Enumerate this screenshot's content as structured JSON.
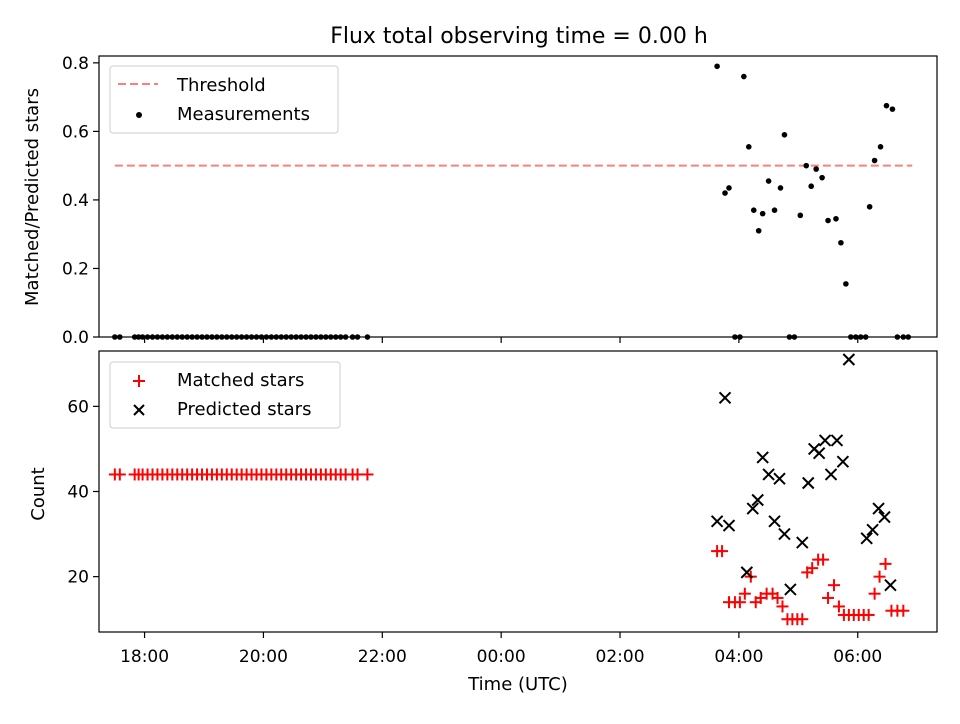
{
  "chart_data": [
    {
      "type": "scatter",
      "title": "Flux total observing time = 0.00 h",
      "ylabel": "Matched/Predicted stars",
      "xlabel": "",
      "xlim": [
        "17:14",
        "07:20"
      ],
      "ylim": [
        0,
        0.82
      ],
      "yticks": [
        0.0,
        0.2,
        0.4,
        0.6,
        0.8
      ],
      "ytick_labels": [
        "0.0",
        "0.2",
        "0.4",
        "0.6",
        "0.8"
      ],
      "legend_position": "upper-left",
      "threshold": {
        "name": "Threshold",
        "color": "#ff7f7f",
        "style": "dashed",
        "y": 0.5,
        "x_range": [
          "17:30",
          "06:55"
        ]
      },
      "series": [
        {
          "name": "Measurements",
          "color": "#000000",
          "marker": "dot",
          "points": [
            [
              "17:30",
              0
            ],
            [
              "17:35",
              0
            ],
            [
              "17:50",
              0
            ],
            [
              "17:54",
              0
            ],
            [
              "17:58",
              0
            ],
            [
              "18:03",
              0
            ],
            [
              "18:08",
              0
            ],
            [
              "18:13",
              0
            ],
            [
              "18:18",
              0
            ],
            [
              "18:23",
              0
            ],
            [
              "18:28",
              0
            ],
            [
              "18:33",
              0
            ],
            [
              "18:38",
              0
            ],
            [
              "18:43",
              0
            ],
            [
              "18:48",
              0
            ],
            [
              "18:53",
              0
            ],
            [
              "18:58",
              0
            ],
            [
              "19:03",
              0
            ],
            [
              "19:08",
              0
            ],
            [
              "19:13",
              0
            ],
            [
              "19:18",
              0
            ],
            [
              "19:23",
              0
            ],
            [
              "19:28",
              0
            ],
            [
              "19:33",
              0
            ],
            [
              "19:38",
              0
            ],
            [
              "19:43",
              0
            ],
            [
              "19:48",
              0
            ],
            [
              "19:53",
              0
            ],
            [
              "19:58",
              0
            ],
            [
              "20:03",
              0
            ],
            [
              "20:08",
              0
            ],
            [
              "20:13",
              0
            ],
            [
              "20:18",
              0
            ],
            [
              "20:23",
              0
            ],
            [
              "20:28",
              0
            ],
            [
              "20:33",
              0
            ],
            [
              "20:38",
              0
            ],
            [
              "20:43",
              0
            ],
            [
              "20:48",
              0
            ],
            [
              "20:53",
              0
            ],
            [
              "20:58",
              0
            ],
            [
              "21:03",
              0
            ],
            [
              "21:08",
              0
            ],
            [
              "21:13",
              0
            ],
            [
              "21:18",
              0
            ],
            [
              "21:23",
              0
            ],
            [
              "21:30",
              0
            ],
            [
              "21:35",
              0
            ],
            [
              "21:45",
              0
            ],
            [
              "03:38",
              0.79
            ],
            [
              "03:46",
              0.42
            ],
            [
              "03:50",
              0.435
            ],
            [
              "03:56",
              0
            ],
            [
              "04:01",
              0
            ],
            [
              "04:05",
              0.76
            ],
            [
              "04:10",
              0.555
            ],
            [
              "04:15",
              0.37
            ],
            [
              "04:20",
              0.31
            ],
            [
              "04:24",
              0.36
            ],
            [
              "04:30",
              0.455
            ],
            [
              "04:36",
              0.37
            ],
            [
              "04:42",
              0.435
            ],
            [
              "04:46",
              0.59
            ],
            [
              "04:51",
              0
            ],
            [
              "04:56",
              0
            ],
            [
              "05:02",
              0.355
            ],
            [
              "05:08",
              0.5
            ],
            [
              "05:13",
              0.44
            ],
            [
              "05:18",
              0.49
            ],
            [
              "05:24",
              0.465
            ],
            [
              "05:30",
              0.34
            ],
            [
              "05:38",
              0.345
            ],
            [
              "05:43",
              0.275
            ],
            [
              "05:48",
              0.155
            ],
            [
              "05:53",
              0
            ],
            [
              "05:58",
              0
            ],
            [
              "06:03",
              0
            ],
            [
              "06:08",
              0
            ],
            [
              "06:12",
              0.38
            ],
            [
              "06:17",
              0.515
            ],
            [
              "06:23",
              0.555
            ],
            [
              "06:29",
              0.675
            ],
            [
              "06:35",
              0.665
            ],
            [
              "06:40",
              0
            ],
            [
              "06:46",
              0
            ],
            [
              "06:51",
              0
            ]
          ]
        }
      ]
    },
    {
      "type": "scatter",
      "title": "",
      "ylabel": "Count",
      "xlabel": "Time (UTC)",
      "xlim": [
        "17:14",
        "07:20"
      ],
      "ylim": [
        7,
        73
      ],
      "yticks": [
        20,
        40,
        60
      ],
      "ytick_labels": [
        "20",
        "40",
        "60"
      ],
      "xticks": [
        "18:00",
        "20:00",
        "22:00",
        "00:00",
        "02:00",
        "04:00",
        "06:00"
      ],
      "legend_position": "upper-left",
      "series": [
        {
          "name": "Matched stars",
          "color": "#ff0000",
          "marker": "plus",
          "points": [
            [
              "17:30",
              44
            ],
            [
              "17:35",
              44
            ],
            [
              "17:50",
              44
            ],
            [
              "17:54",
              44
            ],
            [
              "17:58",
              44
            ],
            [
              "18:03",
              44
            ],
            [
              "18:08",
              44
            ],
            [
              "18:13",
              44
            ],
            [
              "18:18",
              44
            ],
            [
              "18:23",
              44
            ],
            [
              "18:28",
              44
            ],
            [
              "18:33",
              44
            ],
            [
              "18:38",
              44
            ],
            [
              "18:43",
              44
            ],
            [
              "18:48",
              44
            ],
            [
              "18:53",
              44
            ],
            [
              "18:58",
              44
            ],
            [
              "19:03",
              44
            ],
            [
              "19:08",
              44
            ],
            [
              "19:13",
              44
            ],
            [
              "19:18",
              44
            ],
            [
              "19:23",
              44
            ],
            [
              "19:28",
              44
            ],
            [
              "19:33",
              44
            ],
            [
              "19:38",
              44
            ],
            [
              "19:43",
              44
            ],
            [
              "19:48",
              44
            ],
            [
              "19:53",
              44
            ],
            [
              "19:58",
              44
            ],
            [
              "20:03",
              44
            ],
            [
              "20:08",
              44
            ],
            [
              "20:13",
              44
            ],
            [
              "20:18",
              44
            ],
            [
              "20:23",
              44
            ],
            [
              "20:28",
              44
            ],
            [
              "20:33",
              44
            ],
            [
              "20:38",
              44
            ],
            [
              "20:43",
              44
            ],
            [
              "20:48",
              44
            ],
            [
              "20:53",
              44
            ],
            [
              "20:58",
              44
            ],
            [
              "21:03",
              44
            ],
            [
              "21:08",
              44
            ],
            [
              "21:13",
              44
            ],
            [
              "21:18",
              44
            ],
            [
              "21:23",
              44
            ],
            [
              "21:30",
              44
            ],
            [
              "21:35",
              44
            ],
            [
              "21:45",
              44
            ],
            [
              "03:38",
              26
            ],
            [
              "03:43",
              26
            ],
            [
              "03:50",
              14
            ],
            [
              "03:56",
              14
            ],
            [
              "04:01",
              14
            ],
            [
              "04:06",
              16
            ],
            [
              "04:12",
              20
            ],
            [
              "04:17",
              14
            ],
            [
              "04:22",
              15
            ],
            [
              "04:28",
              16
            ],
            [
              "04:34",
              16
            ],
            [
              "04:39",
              15
            ],
            [
              "04:44",
              13
            ],
            [
              "04:49",
              10
            ],
            [
              "04:54",
              10
            ],
            [
              "04:59",
              10
            ],
            [
              "05:04",
              10
            ],
            [
              "05:09",
              21
            ],
            [
              "05:14",
              22
            ],
            [
              "05:20",
              24
            ],
            [
              "05:25",
              24
            ],
            [
              "05:30",
              15
            ],
            [
              "05:36",
              18
            ],
            [
              "05:41",
              13
            ],
            [
              "05:46",
              11
            ],
            [
              "05:51",
              11
            ],
            [
              "05:56",
              11
            ],
            [
              "06:01",
              11
            ],
            [
              "06:06",
              11
            ],
            [
              "06:11",
              11
            ],
            [
              "06:17",
              16
            ],
            [
              "06:22",
              20
            ],
            [
              "06:28",
              23
            ],
            [
              "06:34",
              12
            ],
            [
              "06:40",
              12
            ],
            [
              "06:46",
              12
            ]
          ]
        },
        {
          "name": "Predicted stars",
          "color": "#000000",
          "marker": "x",
          "points": [
            [
              "03:38",
              33
            ],
            [
              "03:46",
              62
            ],
            [
              "03:50",
              32
            ],
            [
              "04:08",
              21
            ],
            [
              "04:14",
              36
            ],
            [
              "04:19",
              38
            ],
            [
              "04:24",
              48
            ],
            [
              "04:30",
              44
            ],
            [
              "04:36",
              33
            ],
            [
              "04:41",
              43
            ],
            [
              "04:46",
              30
            ],
            [
              "04:52",
              17
            ],
            [
              "05:04",
              28
            ],
            [
              "05:10",
              42
            ],
            [
              "05:16",
              50
            ],
            [
              "05:21",
              49
            ],
            [
              "05:27",
              52
            ],
            [
              "05:33",
              44
            ],
            [
              "05:39",
              52
            ],
            [
              "05:45",
              47
            ],
            [
              "05:51",
              71
            ],
            [
              "06:09",
              29
            ],
            [
              "06:15",
              31
            ],
            [
              "06:21",
              36
            ],
            [
              "06:27",
              34
            ],
            [
              "06:33",
              18
            ]
          ]
        }
      ]
    }
  ]
}
